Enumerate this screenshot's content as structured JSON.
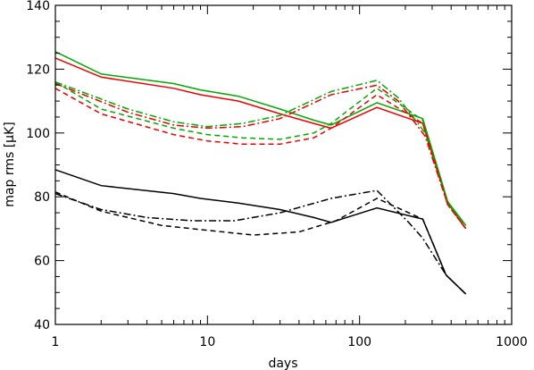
{
  "chart_data": {
    "type": "line",
    "title": "",
    "xlabel": "days",
    "ylabel": "map rms [μK]",
    "xscale": "log",
    "xlim": [
      1,
      1000
    ],
    "ylim": [
      40,
      140
    ],
    "x_ticks": [
      1,
      10,
      100,
      1000
    ],
    "x_tick_labels": [
      "1",
      "10",
      "100",
      "1000"
    ],
    "y_ticks": [
      40,
      60,
      80,
      100,
      120,
      140
    ],
    "y_tick_labels": [
      "40",
      "60",
      "80",
      "100",
      "120",
      "140"
    ],
    "grid": false,
    "legend": "none",
    "series": [
      {
        "color": "#00aa00",
        "dash": "solid",
        "points": [
          [
            1,
            125.5
          ],
          [
            2,
            118.5
          ],
          [
            6,
            115.5
          ],
          [
            9,
            113.5
          ],
          [
            16,
            111.5
          ],
          [
            30,
            107.5
          ],
          [
            50,
            104
          ],
          [
            65,
            102.5
          ],
          [
            130,
            109.5
          ],
          [
            260,
            104.5
          ],
          [
            380,
            78.5
          ],
          [
            500,
            71
          ]
        ]
      },
      {
        "color": "#ee0000",
        "dash": "solid",
        "points": [
          [
            1,
            123.5
          ],
          [
            2,
            117.5
          ],
          [
            6,
            114
          ],
          [
            9,
            112
          ],
          [
            16,
            110
          ],
          [
            30,
            106
          ],
          [
            50,
            103
          ],
          [
            65,
            101.5
          ],
          [
            130,
            108
          ],
          [
            260,
            103
          ],
          [
            380,
            78
          ],
          [
            500,
            70
          ]
        ]
      },
      {
        "color": "#00aa00",
        "dash": "dashdot",
        "points": [
          [
            1,
            116
          ],
          [
            3,
            107.5
          ],
          [
            6,
            103.5
          ],
          [
            10,
            102
          ],
          [
            17,
            103
          ],
          [
            30,
            105.5
          ],
          [
            65,
            113
          ],
          [
            130,
            116.5
          ],
          [
            180,
            111
          ],
          [
            270,
            100
          ],
          [
            380,
            78
          ],
          [
            500,
            71
          ]
        ]
      },
      {
        "color": "#ee0000",
        "dash": "dashdot",
        "points": [
          [
            1,
            115.5
          ],
          [
            3,
            106.5
          ],
          [
            6,
            102.5
          ],
          [
            10,
            101.5
          ],
          [
            17,
            102
          ],
          [
            30,
            104.5
          ],
          [
            65,
            112
          ],
          [
            130,
            115
          ],
          [
            180,
            110
          ],
          [
            270,
            99
          ],
          [
            380,
            77.5
          ],
          [
            500,
            70
          ]
        ]
      },
      {
        "color": "#00aa00",
        "dash": "dashed",
        "points": [
          [
            1,
            116
          ],
          [
            2,
            107.5
          ],
          [
            6,
            101.5
          ],
          [
            10,
            99.5
          ],
          [
            17,
            98.5
          ],
          [
            30,
            98
          ],
          [
            50,
            100
          ],
          [
            65,
            103
          ],
          [
            130,
            114
          ],
          [
            260,
            104
          ],
          [
            380,
            78
          ],
          [
            500,
            71
          ]
        ]
      },
      {
        "color": "#ee0000",
        "dash": "dashed",
        "points": [
          [
            1,
            114
          ],
          [
            2,
            106
          ],
          [
            6,
            99.5
          ],
          [
            10,
            97.5
          ],
          [
            17,
            96.5
          ],
          [
            30,
            96.5
          ],
          [
            50,
            98.5
          ],
          [
            65,
            101.5
          ],
          [
            130,
            112
          ],
          [
            260,
            103
          ],
          [
            380,
            77.5
          ],
          [
            500,
            70
          ]
        ]
      },
      {
        "color": "#000000",
        "dash": "solid",
        "points": [
          [
            1,
            88.5
          ],
          [
            2,
            83.5
          ],
          [
            6,
            81
          ],
          [
            9,
            79.5
          ],
          [
            16,
            78
          ],
          [
            30,
            76
          ],
          [
            50,
            73.5
          ],
          [
            65,
            72
          ],
          [
            130,
            76.5
          ],
          [
            260,
            73
          ],
          [
            370,
            55.5
          ],
          [
            500,
            49.5
          ]
        ]
      },
      {
        "color": "#000000",
        "dash": "dashdot",
        "points": [
          [
            1,
            81
          ],
          [
            2,
            76
          ],
          [
            4,
            73.5
          ],
          [
            8,
            72.5
          ],
          [
            15,
            72.5
          ],
          [
            30,
            75
          ],
          [
            65,
            79.5
          ],
          [
            130,
            82
          ],
          [
            210,
            72
          ],
          [
            260,
            67
          ],
          [
            370,
            55.5
          ],
          [
            500,
            49.5
          ]
        ]
      },
      {
        "color": "#000000",
        "dash": "dashed",
        "points": [
          [
            1,
            81.5
          ],
          [
            2,
            75.5
          ],
          [
            5,
            71
          ],
          [
            10,
            69.5
          ],
          [
            20,
            68
          ],
          [
            40,
            69
          ],
          [
            70,
            72.5
          ],
          [
            130,
            79.5
          ],
          [
            260,
            73
          ],
          [
            370,
            55.5
          ],
          [
            500,
            49.5
          ]
        ]
      }
    ]
  }
}
